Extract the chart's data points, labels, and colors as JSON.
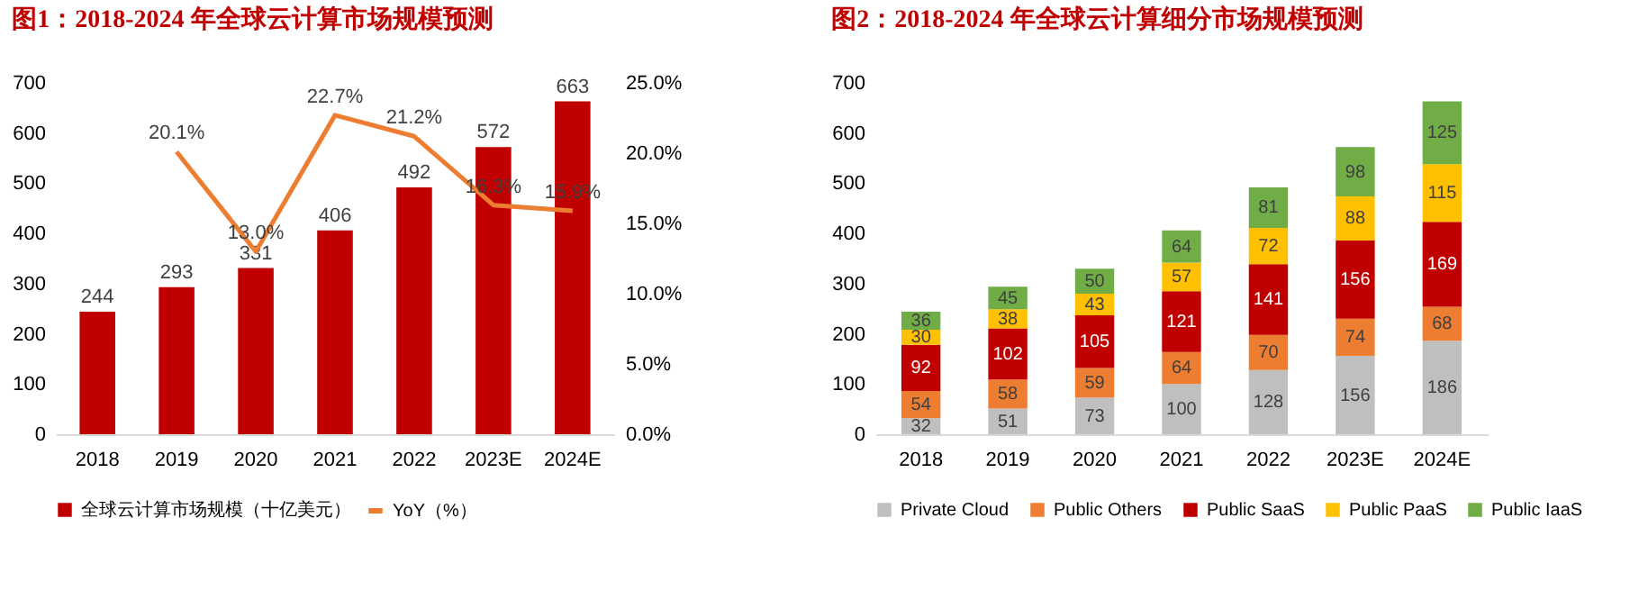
{
  "chart_data": [
    {
      "type": "bar",
      "title": "图1：2018-2024 年全球云计算市场规模预测",
      "categories": [
        "2018",
        "2019",
        "2020",
        "2021",
        "2022",
        "2023E",
        "2024E"
      ],
      "series": [
        {
          "name": "全球云计算市场规模（十亿美元）",
          "color": "#c00000",
          "values": [
            244,
            293,
            331,
            406,
            492,
            572,
            663
          ]
        },
        {
          "name": "YoY（%）",
          "type": "line",
          "axis": "y2",
          "color": "#ed7d31",
          "values": [
            null,
            20.1,
            13.0,
            22.7,
            21.2,
            16.3,
            15.9
          ],
          "value_labels": [
            null,
            "20.1%",
            "13.0%",
            "22.7%",
            "21.2%",
            "16.3%",
            "15.9%"
          ]
        }
      ],
      "ylim": [
        0,
        700
      ],
      "yticks": [
        0,
        100,
        200,
        300,
        400,
        500,
        600,
        700
      ],
      "y2lim": [
        0,
        25
      ],
      "y2ticks": [
        {
          "value": 0,
          "label": "0.0%"
        },
        {
          "value": 5,
          "label": "5.0%"
        },
        {
          "value": 10,
          "label": "10.0%"
        },
        {
          "value": 15,
          "label": "15.0%"
        },
        {
          "value": 20,
          "label": "20.0%"
        },
        {
          "value": 25,
          "label": "25.0%"
        }
      ],
      "data_labels": true,
      "legend": "bottom"
    },
    {
      "type": "bar",
      "title": "图2：2018-2024 年全球云计算细分市场规模预测",
      "categories": [
        "2018",
        "2019",
        "2020",
        "2021",
        "2022",
        "2023E",
        "2024E"
      ],
      "stacked": true,
      "series": [
        {
          "name": "Private Cloud",
          "color": "#bfbfbf",
          "values": [
            32,
            51,
            73,
            100,
            128,
            156,
            186
          ]
        },
        {
          "name": "Public Others",
          "color": "#ed7d31",
          "values": [
            54,
            58,
            59,
            64,
            70,
            74,
            68
          ]
        },
        {
          "name": "Public SaaS",
          "color": "#c00000",
          "values": [
            92,
            102,
            105,
            121,
            141,
            156,
            169
          ]
        },
        {
          "name": "Public PaaS",
          "color": "#ffc000",
          "values": [
            30,
            38,
            43,
            57,
            72,
            88,
            115
          ]
        },
        {
          "name": "Public IaaS",
          "color": "#70ad47",
          "values": [
            36,
            45,
            50,
            64,
            81,
            98,
            125
          ]
        }
      ],
      "ylim": [
        0,
        700
      ],
      "yticks": [
        0,
        100,
        200,
        300,
        400,
        500,
        600,
        700
      ],
      "data_labels": true,
      "legend": "bottom"
    }
  ]
}
